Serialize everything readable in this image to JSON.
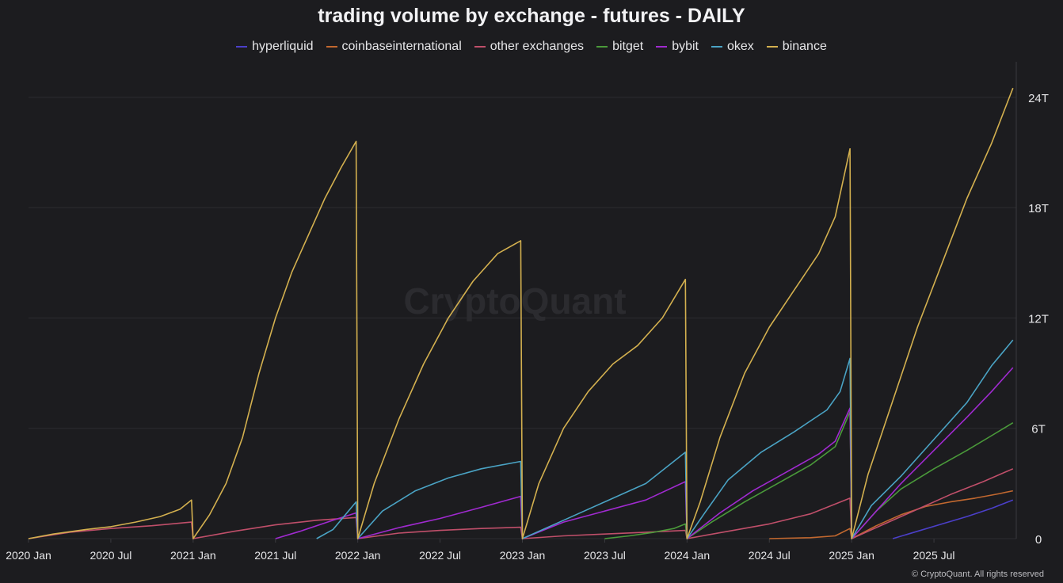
{
  "chart_data": {
    "type": "line",
    "title": "trading volume by exchange - futures - DAILY",
    "watermark": "CryptoQuant",
    "copyright": "© CryptoQuant. All rights reserved",
    "x_ticks": [
      "2020 Jan",
      "2020 Jul",
      "2021 Jan",
      "2021 Jul",
      "2022 Jan",
      "2022 Jul",
      "2023 Jan",
      "2023 Jul",
      "2024 Jan",
      "2024 Jul",
      "2025 Jan",
      "2025 Jul"
    ],
    "y_ticks": [
      "0",
      "6T",
      "12T",
      "18T",
      "24T"
    ],
    "y_tick_values": [
      0,
      6,
      12,
      18,
      24
    ],
    "ylim": [
      0,
      25.5
    ],
    "xlim": [
      2020.0,
      2026.0
    ],
    "y_unit": "T",
    "grid": true,
    "legend_position": "top-center",
    "series": [
      {
        "name": "hyperliquid",
        "color": "#4b3fc9",
        "points": [
          [
            2025.25,
            0
          ],
          [
            2025.4,
            0.4
          ],
          [
            2025.55,
            0.8
          ],
          [
            2025.7,
            1.2
          ],
          [
            2025.85,
            1.65
          ],
          [
            2025.98,
            2.1
          ]
        ]
      },
      {
        "name": "coinbaseinternational",
        "color": "#c2682f",
        "points": [
          [
            2024.5,
            0
          ],
          [
            2024.75,
            0.05
          ],
          [
            2024.9,
            0.15
          ],
          [
            2024.99,
            0.55
          ],
          [
            2025.0,
            0
          ],
          [
            2025.15,
            0.7
          ],
          [
            2025.3,
            1.3
          ],
          [
            2025.45,
            1.75
          ],
          [
            2025.6,
            2.0
          ],
          [
            2025.75,
            2.2
          ],
          [
            2025.9,
            2.45
          ],
          [
            2025.98,
            2.6
          ]
        ]
      },
      {
        "name": "other exchanges",
        "color": "#c04f6a",
        "points": [
          [
            2020.0,
            0
          ],
          [
            2020.25,
            0.35
          ],
          [
            2020.5,
            0.55
          ],
          [
            2020.75,
            0.7
          ],
          [
            2020.99,
            0.9
          ],
          [
            2021.0,
            0
          ],
          [
            2021.25,
            0.4
          ],
          [
            2021.5,
            0.75
          ],
          [
            2021.75,
            1.0
          ],
          [
            2021.99,
            1.15
          ],
          [
            2022.0,
            0
          ],
          [
            2022.25,
            0.3
          ],
          [
            2022.5,
            0.45
          ],
          [
            2022.75,
            0.55
          ],
          [
            2022.99,
            0.62
          ],
          [
            2023.0,
            0
          ],
          [
            2023.25,
            0.15
          ],
          [
            2023.5,
            0.25
          ],
          [
            2023.75,
            0.35
          ],
          [
            2023.99,
            0.45
          ],
          [
            2024.0,
            0
          ],
          [
            2024.25,
            0.4
          ],
          [
            2024.5,
            0.8
          ],
          [
            2024.75,
            1.35
          ],
          [
            2024.99,
            2.2
          ],
          [
            2025.0,
            0
          ],
          [
            2025.2,
            0.8
          ],
          [
            2025.4,
            1.6
          ],
          [
            2025.6,
            2.4
          ],
          [
            2025.8,
            3.1
          ],
          [
            2025.98,
            3.8
          ]
        ]
      },
      {
        "name": "bitget",
        "color": "#4a9a3a",
        "points": [
          [
            2023.5,
            0
          ],
          [
            2023.65,
            0.15
          ],
          [
            2023.8,
            0.35
          ],
          [
            2023.92,
            0.55
          ],
          [
            2023.99,
            0.8
          ],
          [
            2024.0,
            0
          ],
          [
            2024.15,
            0.9
          ],
          [
            2024.35,
            2.0
          ],
          [
            2024.55,
            3.0
          ],
          [
            2024.75,
            4.0
          ],
          [
            2024.9,
            5.0
          ],
          [
            2024.99,
            6.9
          ],
          [
            2025.0,
            0
          ],
          [
            2025.15,
            1.5
          ],
          [
            2025.3,
            2.7
          ],
          [
            2025.5,
            3.8
          ],
          [
            2025.7,
            4.8
          ],
          [
            2025.85,
            5.6
          ],
          [
            2025.98,
            6.3
          ]
        ]
      },
      {
        "name": "bybit",
        "color": "#a02ad0",
        "points": [
          [
            2021.5,
            0
          ],
          [
            2021.65,
            0.4
          ],
          [
            2021.85,
            1.0
          ],
          [
            2021.99,
            1.4
          ],
          [
            2022.0,
            0
          ],
          [
            2022.25,
            0.6
          ],
          [
            2022.5,
            1.1
          ],
          [
            2022.75,
            1.7
          ],
          [
            2022.99,
            2.3
          ],
          [
            2023.0,
            0
          ],
          [
            2023.25,
            0.9
          ],
          [
            2023.5,
            1.5
          ],
          [
            2023.75,
            2.1
          ],
          [
            2023.99,
            3.1
          ],
          [
            2024.0,
            0
          ],
          [
            2024.2,
            1.4
          ],
          [
            2024.4,
            2.6
          ],
          [
            2024.6,
            3.6
          ],
          [
            2024.8,
            4.6
          ],
          [
            2024.9,
            5.3
          ],
          [
            2024.99,
            7.1
          ],
          [
            2025.0,
            0
          ],
          [
            2025.15,
            1.5
          ],
          [
            2025.3,
            3.0
          ],
          [
            2025.5,
            4.8
          ],
          [
            2025.7,
            6.6
          ],
          [
            2025.85,
            8.0
          ],
          [
            2025.98,
            9.3
          ]
        ]
      },
      {
        "name": "okex",
        "color": "#4aa3c4",
        "points": [
          [
            2021.75,
            0
          ],
          [
            2021.85,
            0.5
          ],
          [
            2021.99,
            2.0
          ],
          [
            2022.0,
            0
          ],
          [
            2022.15,
            1.5
          ],
          [
            2022.35,
            2.6
          ],
          [
            2022.55,
            3.3
          ],
          [
            2022.75,
            3.8
          ],
          [
            2022.99,
            4.2
          ],
          [
            2023.0,
            0
          ],
          [
            2023.25,
            1.0
          ],
          [
            2023.5,
            2.0
          ],
          [
            2023.75,
            3.0
          ],
          [
            2023.99,
            4.7
          ],
          [
            2024.0,
            0
          ],
          [
            2024.1,
            1.3
          ],
          [
            2024.25,
            3.2
          ],
          [
            2024.45,
            4.7
          ],
          [
            2024.65,
            5.8
          ],
          [
            2024.85,
            7.0
          ],
          [
            2024.93,
            8.0
          ],
          [
            2024.99,
            9.8
          ],
          [
            2025.0,
            0
          ],
          [
            2025.12,
            1.8
          ],
          [
            2025.3,
            3.4
          ],
          [
            2025.5,
            5.4
          ],
          [
            2025.7,
            7.4
          ],
          [
            2025.85,
            9.4
          ],
          [
            2025.98,
            10.8
          ]
        ]
      },
      {
        "name": "binance",
        "color": "#d3b04f",
        "points": [
          [
            2020.0,
            0
          ],
          [
            2020.15,
            0.25
          ],
          [
            2020.35,
            0.5
          ],
          [
            2020.5,
            0.65
          ],
          [
            2020.65,
            0.9
          ],
          [
            2020.8,
            1.2
          ],
          [
            2020.92,
            1.6
          ],
          [
            2020.99,
            2.1
          ],
          [
            2021.0,
            0
          ],
          [
            2021.1,
            1.3
          ],
          [
            2021.2,
            3.0
          ],
          [
            2021.3,
            5.5
          ],
          [
            2021.4,
            9.0
          ],
          [
            2021.5,
            12.0
          ],
          [
            2021.6,
            14.5
          ],
          [
            2021.7,
            16.5
          ],
          [
            2021.8,
            18.5
          ],
          [
            2021.9,
            20.2
          ],
          [
            2021.99,
            21.6
          ],
          [
            2022.0,
            0
          ],
          [
            2022.1,
            3.0
          ],
          [
            2022.25,
            6.5
          ],
          [
            2022.4,
            9.5
          ],
          [
            2022.55,
            12.0
          ],
          [
            2022.7,
            14.0
          ],
          [
            2022.85,
            15.5
          ],
          [
            2022.99,
            16.2
          ],
          [
            2023.0,
            0
          ],
          [
            2023.1,
            3.0
          ],
          [
            2023.25,
            6.0
          ],
          [
            2023.4,
            8.0
          ],
          [
            2023.55,
            9.5
          ],
          [
            2023.7,
            10.5
          ],
          [
            2023.85,
            12.0
          ],
          [
            2023.99,
            14.1
          ],
          [
            2024.0,
            0
          ],
          [
            2024.08,
            2.0
          ],
          [
            2024.2,
            5.5
          ],
          [
            2024.35,
            9.0
          ],
          [
            2024.5,
            11.5
          ],
          [
            2024.65,
            13.5
          ],
          [
            2024.8,
            15.5
          ],
          [
            2024.9,
            17.5
          ],
          [
            2024.99,
            21.2
          ],
          [
            2025.0,
            0
          ],
          [
            2025.1,
            3.5
          ],
          [
            2025.25,
            7.5
          ],
          [
            2025.4,
            11.5
          ],
          [
            2025.55,
            15.0
          ],
          [
            2025.7,
            18.5
          ],
          [
            2025.85,
            21.5
          ],
          [
            2025.98,
            24.5
          ]
        ]
      }
    ]
  }
}
